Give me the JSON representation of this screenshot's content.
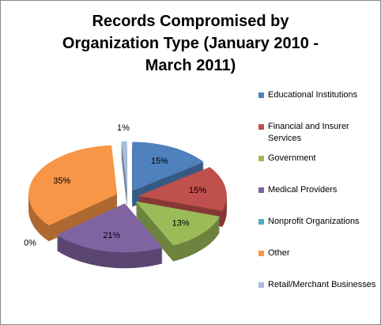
{
  "chart_data": {
    "type": "pie",
    "title": "Records Compromised by Organization Type (January 2010 - March 2011)",
    "categories": [
      "Educational Institutions",
      "Financial and Insurer Services",
      "Government",
      "Medical Providers",
      "Nonprofit Organizations",
      "Other",
      "Retail/Merchant Businesses"
    ],
    "values": [
      15,
      15,
      13,
      21,
      0,
      35,
      1
    ],
    "value_labels": [
      "15%",
      "15%",
      "13%",
      "21%",
      "0%",
      "35%",
      "1%"
    ],
    "colors": [
      "#4f81bd",
      "#c0504d",
      "#9bbb59",
      "#8064a2",
      "#4bacc6",
      "#f79646",
      "#a7bcdc"
    ],
    "legend": "right"
  }
}
